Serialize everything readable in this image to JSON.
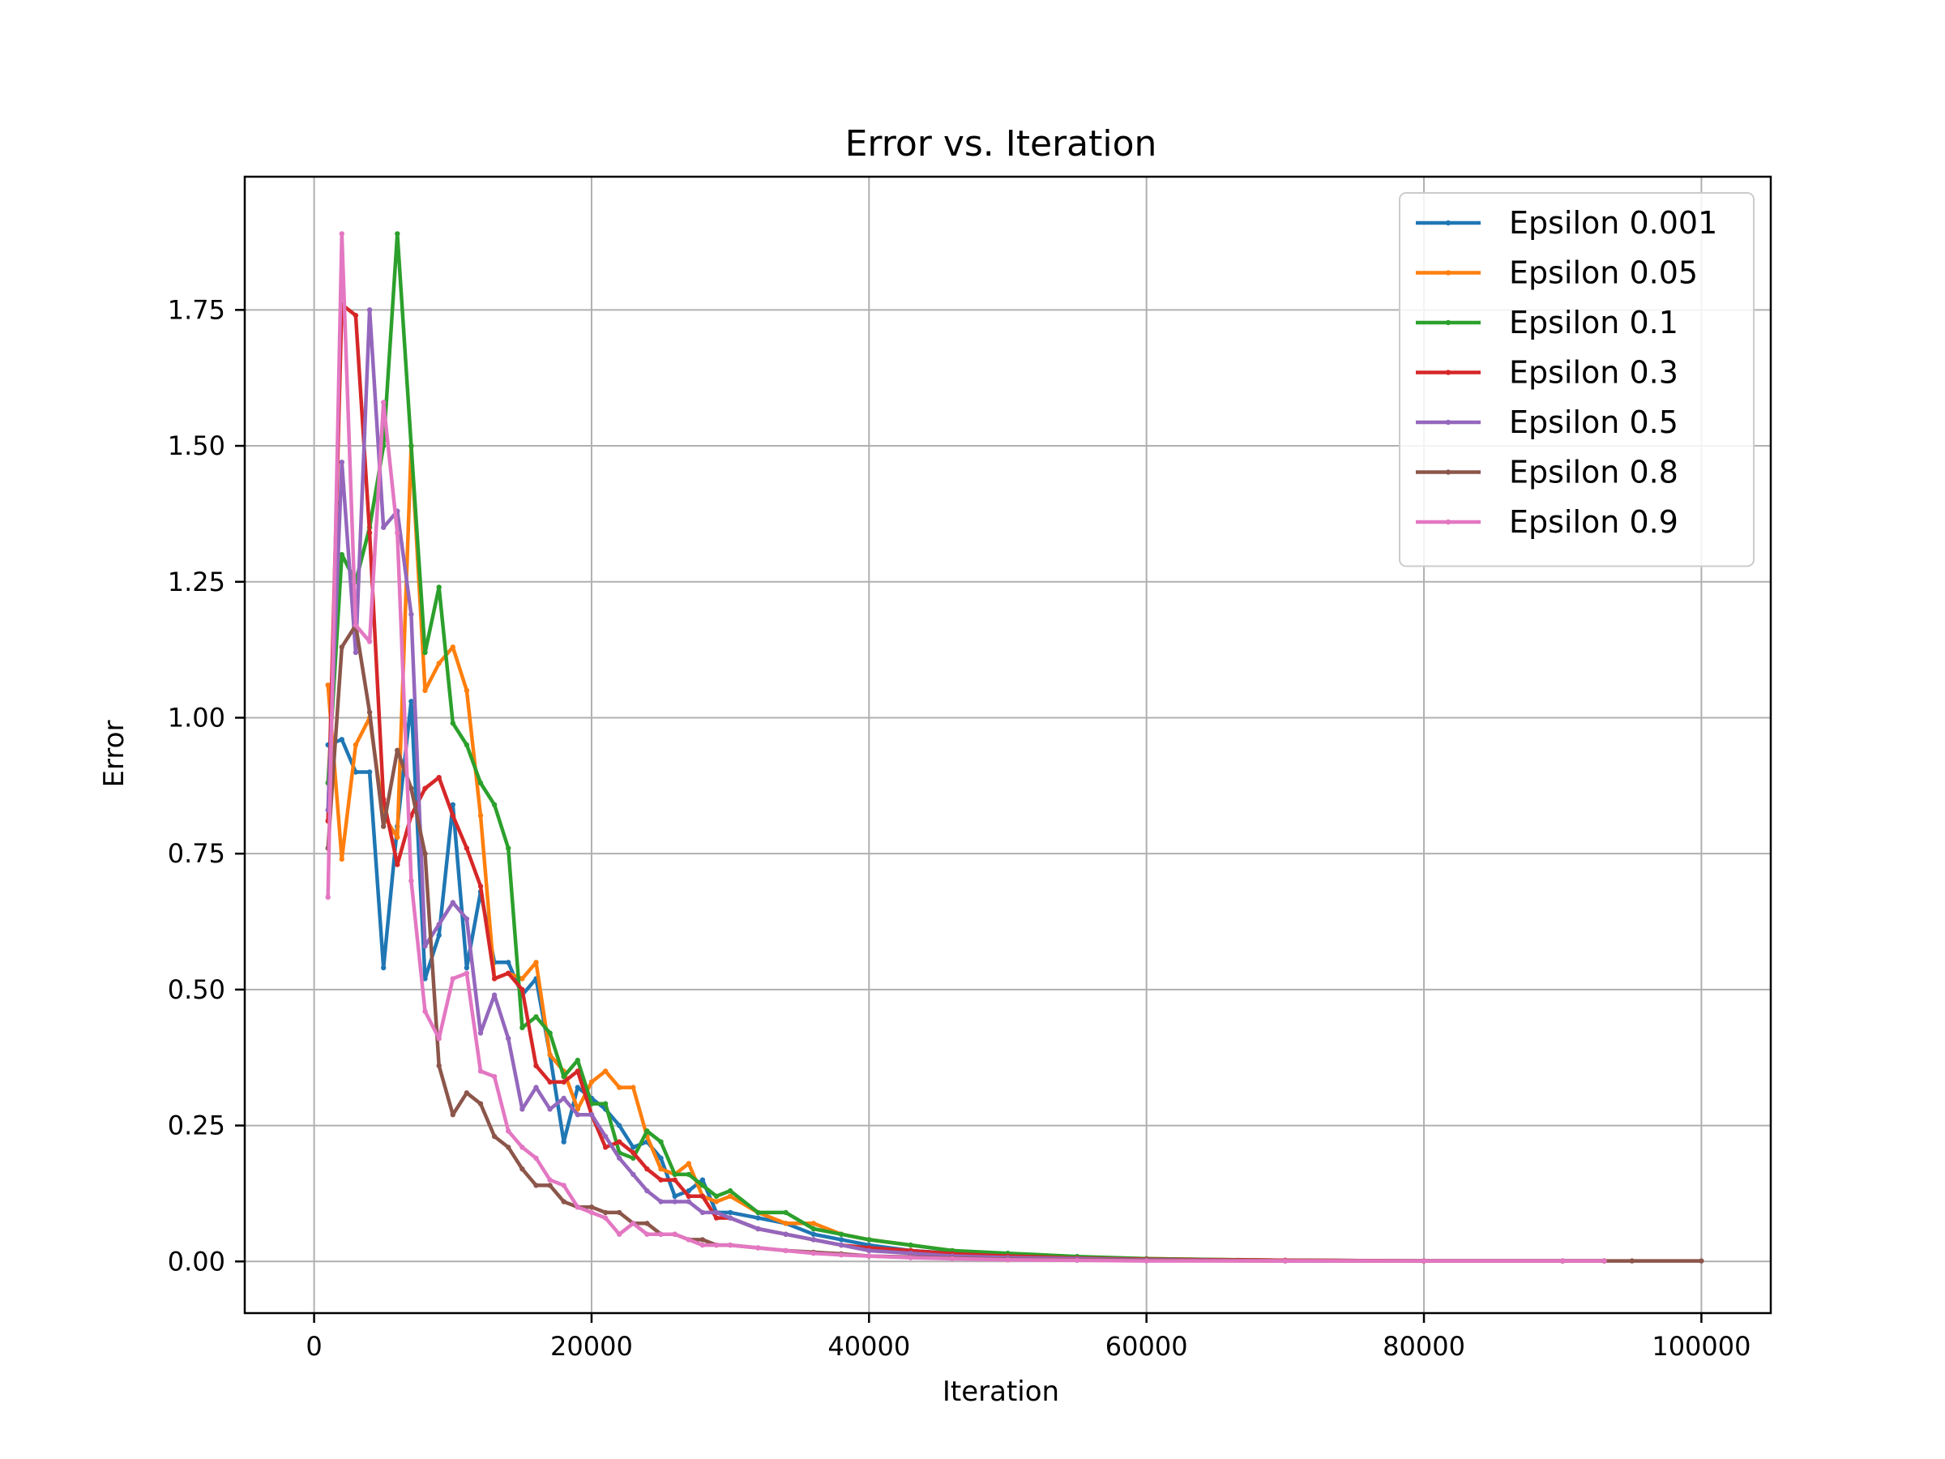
{
  "chart_data": {
    "type": "line",
    "title": "Error vs. Iteration",
    "xlabel": "Iteration",
    "ylabel": "Error",
    "xlim": [
      -5000,
      105000
    ],
    "ylim": [
      -0.095,
      1.995
    ],
    "xticks": [
      0,
      20000,
      40000,
      60000,
      80000,
      100000
    ],
    "yticks": [
      0.0,
      0.25,
      0.5,
      0.75,
      1.0,
      1.25,
      1.5,
      1.75
    ],
    "xtick_labels": [
      "0",
      "20000",
      "40000",
      "60000",
      "80000",
      "100000"
    ],
    "ytick_labels": [
      "0.00",
      "0.25",
      "0.50",
      "0.75",
      "1.00",
      "1.25",
      "1.50",
      "1.75"
    ],
    "grid": true,
    "legend_position": "top-right",
    "series": [
      {
        "name": "Epsilon 0.001",
        "color": "#1f77b4",
        "x": [
          1000,
          2000,
          3000,
          4000,
          5000,
          6000,
          7000,
          8000,
          9000,
          10000,
          11000,
          12000,
          13000,
          14000,
          15000,
          16000,
          17000,
          18000,
          19000,
          20000,
          21000,
          22000,
          23000,
          24000,
          25000,
          26000,
          27000,
          28000,
          29000,
          30000,
          32000,
          34000,
          36000,
          38000,
          40000,
          43000,
          46000,
          50000,
          55000,
          60000,
          70000,
          80000,
          90000,
          93000
        ],
        "y": [
          0.95,
          0.96,
          0.9,
          0.9,
          0.54,
          0.8,
          1.03,
          0.52,
          0.6,
          0.84,
          0.54,
          0.68,
          0.55,
          0.55,
          0.49,
          0.52,
          0.38,
          0.22,
          0.32,
          0.3,
          0.28,
          0.25,
          0.21,
          0.22,
          0.19,
          0.12,
          0.13,
          0.15,
          0.09,
          0.09,
          0.08,
          0.07,
          0.05,
          0.04,
          0.03,
          0.02,
          0.015,
          0.01,
          0.007,
          0.004,
          0.002,
          0.001,
          0.001,
          0.001
        ]
      },
      {
        "name": "Epsilon 0.05",
        "color": "#ff7f0e",
        "x": [
          1000,
          2000,
          3000,
          4000,
          5000,
          6000,
          7000,
          8000,
          9000,
          10000,
          11000,
          12000,
          13000,
          14000,
          15000,
          16000,
          17000,
          18000,
          19000,
          20000,
          21000,
          22000,
          23000,
          24000,
          25000,
          26000,
          27000,
          28000,
          29000,
          30000,
          32000,
          34000,
          36000,
          38000,
          40000,
          43000,
          46000,
          50000,
          55000,
          60000,
          70000,
          80000,
          90000,
          93000
        ],
        "y": [
          1.06,
          0.74,
          0.95,
          1.0,
          0.82,
          0.78,
          1.5,
          1.05,
          1.1,
          1.13,
          1.05,
          0.82,
          0.52,
          0.53,
          0.52,
          0.55,
          0.38,
          0.35,
          0.28,
          0.33,
          0.35,
          0.32,
          0.32,
          0.23,
          0.17,
          0.16,
          0.18,
          0.12,
          0.11,
          0.12,
          0.09,
          0.07,
          0.07,
          0.05,
          0.04,
          0.03,
          0.02,
          0.013,
          0.008,
          0.005,
          0.002,
          0.001,
          0.001,
          0.001
        ]
      },
      {
        "name": "Epsilon 0.1",
        "color": "#2ca02c",
        "x": [
          1000,
          2000,
          3000,
          4000,
          5000,
          6000,
          7000,
          8000,
          9000,
          10000,
          11000,
          12000,
          13000,
          14000,
          15000,
          16000,
          17000,
          18000,
          19000,
          20000,
          21000,
          22000,
          23000,
          24000,
          25000,
          26000,
          27000,
          28000,
          29000,
          30000,
          32000,
          34000,
          36000,
          38000,
          40000,
          43000,
          46000,
          50000,
          55000,
          60000,
          70000,
          80000,
          90000,
          93000
        ],
        "y": [
          0.88,
          1.3,
          1.25,
          1.35,
          1.5,
          1.89,
          1.5,
          1.12,
          1.24,
          0.99,
          0.95,
          0.88,
          0.84,
          0.76,
          0.43,
          0.45,
          0.42,
          0.34,
          0.37,
          0.29,
          0.29,
          0.2,
          0.19,
          0.24,
          0.22,
          0.16,
          0.16,
          0.14,
          0.12,
          0.13,
          0.09,
          0.09,
          0.06,
          0.05,
          0.04,
          0.03,
          0.02,
          0.015,
          0.009,
          0.005,
          0.002,
          0.001,
          0.001,
          0.001
        ]
      },
      {
        "name": "Epsilon 0.3",
        "color": "#d62728",
        "x": [
          1000,
          2000,
          3000,
          4000,
          5000,
          6000,
          7000,
          8000,
          9000,
          10000,
          11000,
          12000,
          13000,
          14000,
          15000,
          16000,
          17000,
          18000,
          19000,
          20000,
          21000,
          22000,
          23000,
          24000,
          25000,
          26000,
          27000,
          28000,
          29000,
          30000,
          32000,
          34000,
          36000,
          38000,
          40000,
          43000,
          46000,
          50000,
          55000,
          60000,
          70000,
          80000,
          90000,
          93000
        ],
        "y": [
          0.81,
          1.76,
          1.74,
          1.34,
          0.85,
          0.73,
          0.82,
          0.87,
          0.89,
          0.82,
          0.76,
          0.69,
          0.52,
          0.53,
          0.5,
          0.36,
          0.33,
          0.33,
          0.35,
          0.27,
          0.21,
          0.22,
          0.2,
          0.17,
          0.15,
          0.15,
          0.12,
          0.12,
          0.08,
          0.08,
          0.06,
          0.05,
          0.04,
          0.03,
          0.025,
          0.02,
          0.014,
          0.01,
          0.006,
          0.004,
          0.002,
          0.001,
          0.001,
          0.001
        ]
      },
      {
        "name": "Epsilon 0.5",
        "color": "#9467bd",
        "x": [
          1000,
          2000,
          3000,
          4000,
          5000,
          6000,
          7000,
          8000,
          9000,
          10000,
          11000,
          12000,
          13000,
          14000,
          15000,
          16000,
          17000,
          18000,
          19000,
          20000,
          21000,
          22000,
          23000,
          24000,
          25000,
          26000,
          27000,
          28000,
          29000,
          30000,
          32000,
          34000,
          36000,
          38000,
          40000,
          43000,
          46000,
          50000,
          55000,
          60000,
          70000,
          80000,
          90000,
          93000
        ],
        "y": [
          0.83,
          1.47,
          1.12,
          1.75,
          1.35,
          1.38,
          1.19,
          0.58,
          0.62,
          0.66,
          0.63,
          0.42,
          0.49,
          0.41,
          0.28,
          0.32,
          0.28,
          0.3,
          0.27,
          0.27,
          0.23,
          0.19,
          0.16,
          0.13,
          0.11,
          0.11,
          0.11,
          0.09,
          0.09,
          0.08,
          0.06,
          0.05,
          0.04,
          0.03,
          0.02,
          0.015,
          0.01,
          0.007,
          0.005,
          0.003,
          0.001,
          0.001,
          0.001,
          0.001
        ]
      },
      {
        "name": "Epsilon 0.8",
        "color": "#8c564b",
        "x": [
          1000,
          2000,
          3000,
          4000,
          5000,
          6000,
          7000,
          8000,
          9000,
          10000,
          11000,
          12000,
          13000,
          14000,
          15000,
          16000,
          17000,
          18000,
          19000,
          20000,
          21000,
          22000,
          23000,
          24000,
          25000,
          26000,
          27000,
          28000,
          29000,
          30000,
          32000,
          34000,
          36000,
          38000,
          40000,
          43000,
          46000,
          50000,
          55000,
          60000,
          70000,
          80000,
          90000,
          95000,
          100000
        ],
        "y": [
          0.76,
          1.13,
          1.17,
          1.01,
          0.8,
          0.94,
          0.87,
          0.75,
          0.36,
          0.27,
          0.31,
          0.29,
          0.23,
          0.21,
          0.17,
          0.14,
          0.14,
          0.11,
          0.1,
          0.1,
          0.09,
          0.09,
          0.07,
          0.07,
          0.05,
          0.05,
          0.04,
          0.04,
          0.03,
          0.03,
          0.025,
          0.02,
          0.017,
          0.014,
          0.01,
          0.008,
          0.006,
          0.004,
          0.003,
          0.002,
          0.001,
          0.001,
          0.001,
          0.001,
          0.001
        ]
      },
      {
        "name": "Epsilon 0.9",
        "color": "#e377c2",
        "x": [
          1000,
          2000,
          3000,
          4000,
          5000,
          6000,
          7000,
          8000,
          9000,
          10000,
          11000,
          12000,
          13000,
          14000,
          15000,
          16000,
          17000,
          18000,
          19000,
          20000,
          21000,
          22000,
          23000,
          24000,
          25000,
          26000,
          27000,
          28000,
          29000,
          30000,
          32000,
          34000,
          36000,
          38000,
          40000,
          43000,
          46000,
          50000,
          55000,
          60000,
          70000,
          80000,
          90000,
          93000
        ],
        "y": [
          0.67,
          1.89,
          1.17,
          1.14,
          1.58,
          1.34,
          0.7,
          0.46,
          0.41,
          0.52,
          0.53,
          0.35,
          0.34,
          0.24,
          0.21,
          0.19,
          0.15,
          0.14,
          0.1,
          0.09,
          0.08,
          0.05,
          0.07,
          0.05,
          0.05,
          0.05,
          0.04,
          0.03,
          0.03,
          0.03,
          0.025,
          0.02,
          0.015,
          0.012,
          0.01,
          0.007,
          0.005,
          0.003,
          0.002,
          0.001,
          0.001,
          0.001,
          0.001,
          0.001
        ]
      }
    ]
  }
}
